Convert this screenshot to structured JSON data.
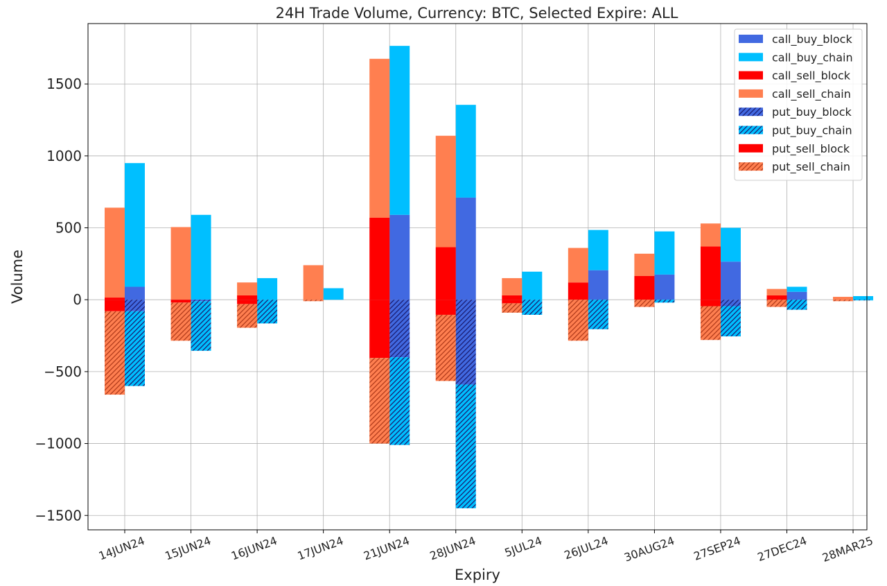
{
  "chart_data": {
    "type": "bar",
    "title": "24H Trade Volume, Currency: BTC, Selected Expire: ALL",
    "xlabel": "Expiry",
    "ylabel": "Volume",
    "ylim": [
      -1600,
      1920
    ],
    "yticks": [
      1500,
      1000,
      500,
      0,
      -500,
      -1000,
      -1500
    ],
    "ytick_labels": [
      "1500",
      "1000",
      "500",
      "0",
      "−500",
      "−1000",
      "−1500"
    ],
    "grid": true,
    "legend_position": "top-right",
    "categories": [
      "14JUN24",
      "15JUN24",
      "16JUN24",
      "17JUN24",
      "21JUN24",
      "28JUN24",
      "5JUL24",
      "26JUL24",
      "30AUG24",
      "27SEP24",
      "27DEC24",
      "28MAR25"
    ],
    "series": [
      {
        "name": "call_buy_block",
        "side": "buy",
        "sign": 1,
        "color": "#4169e1",
        "hatch": false,
        "values": [
          90,
          0,
          0,
          0,
          590,
          710,
          0,
          205,
          175,
          265,
          55,
          0
        ]
      },
      {
        "name": "call_buy_chain",
        "side": "buy",
        "sign": 1,
        "color": "#00bfff",
        "hatch": false,
        "values": [
          860,
          590,
          150,
          80,
          1175,
          645,
          195,
          280,
          300,
          235,
          35,
          25
        ]
      },
      {
        "name": "call_sell_block",
        "side": "sell",
        "sign": 1,
        "color": "#ff0000",
        "hatch": false,
        "values": [
          15,
          0,
          30,
          0,
          570,
          365,
          30,
          120,
          165,
          370,
          30,
          0
        ]
      },
      {
        "name": "call_sell_chain",
        "side": "sell",
        "sign": 1,
        "color": "#ff7f50",
        "hatch": false,
        "values": [
          625,
          505,
          90,
          240,
          1105,
          775,
          120,
          240,
          155,
          160,
          45,
          20
        ]
      },
      {
        "name": "put_buy_block",
        "side": "buy",
        "sign": -1,
        "color": "#4169e1",
        "hatch": true,
        "values": [
          80,
          10,
          0,
          0,
          400,
          590,
          0,
          0,
          0,
          45,
          0,
          0
        ]
      },
      {
        "name": "put_buy_chain",
        "side": "buy",
        "sign": -1,
        "color": "#00bfff",
        "hatch": true,
        "values": [
          520,
          345,
          165,
          0,
          610,
          860,
          105,
          205,
          20,
          210,
          70,
          5
        ]
      },
      {
        "name": "put_sell_block",
        "side": "sell",
        "sign": -1,
        "color": "#ff0000",
        "hatch": false,
        "values": [
          80,
          20,
          30,
          0,
          405,
          105,
          25,
          0,
          0,
          45,
          0,
          0
        ]
      },
      {
        "name": "put_sell_chain",
        "side": "sell",
        "sign": -1,
        "color": "#ff7f50",
        "hatch": true,
        "values": [
          580,
          265,
          165,
          10,
          595,
          460,
          65,
          285,
          50,
          235,
          50,
          10
        ]
      }
    ]
  }
}
